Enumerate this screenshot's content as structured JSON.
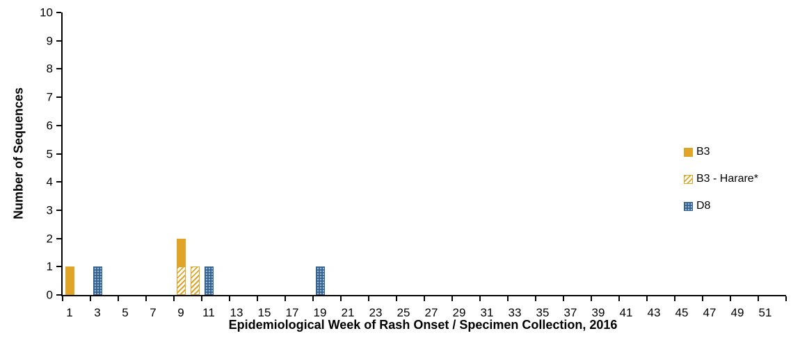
{
  "chart_data": {
    "type": "bar",
    "stacked": true,
    "title": "",
    "xlabel": "Epidemiological Week of Rash Onset / Specimen Collection, 2016",
    "ylabel": "Number of Sequences",
    "ylim": [
      0,
      10
    ],
    "ytick_step": 1,
    "x_weeks": 52,
    "xtick_label_interval": 2,
    "xtick_labels": [
      "1",
      "3",
      "5",
      "7",
      "9",
      "11",
      "13",
      "15",
      "17",
      "19",
      "21",
      "23",
      "25",
      "27",
      "29",
      "31",
      "33",
      "35",
      "37",
      "39",
      "41",
      "43",
      "45",
      "47",
      "49",
      "51"
    ],
    "grid": false,
    "legend_position": "right-inside",
    "series": [
      {
        "name": "B3 - Harare*",
        "color": "#DFA428",
        "pattern": "hatch",
        "points": [
          {
            "week": 9,
            "value": 1
          },
          {
            "week": 10,
            "value": 1
          }
        ]
      },
      {
        "name": "B3",
        "color": "#DFA428",
        "pattern": "solid",
        "points": [
          {
            "week": 1,
            "value": 1
          },
          {
            "week": 9,
            "value": 1
          }
        ]
      },
      {
        "name": "D8",
        "color": "#31618F",
        "pattern": "dots",
        "points": [
          {
            "week": 3,
            "value": 1
          },
          {
            "week": 11,
            "value": 1
          },
          {
            "week": 19,
            "value": 1
          }
        ]
      }
    ],
    "legend": [
      {
        "label": "B3",
        "pattern": "solid",
        "color": "#DFA428"
      },
      {
        "label": "B3 - Harare*",
        "pattern": "hatch",
        "color": "#DFA428"
      },
      {
        "label": "D8",
        "pattern": "dots",
        "color": "#31618F"
      }
    ]
  }
}
